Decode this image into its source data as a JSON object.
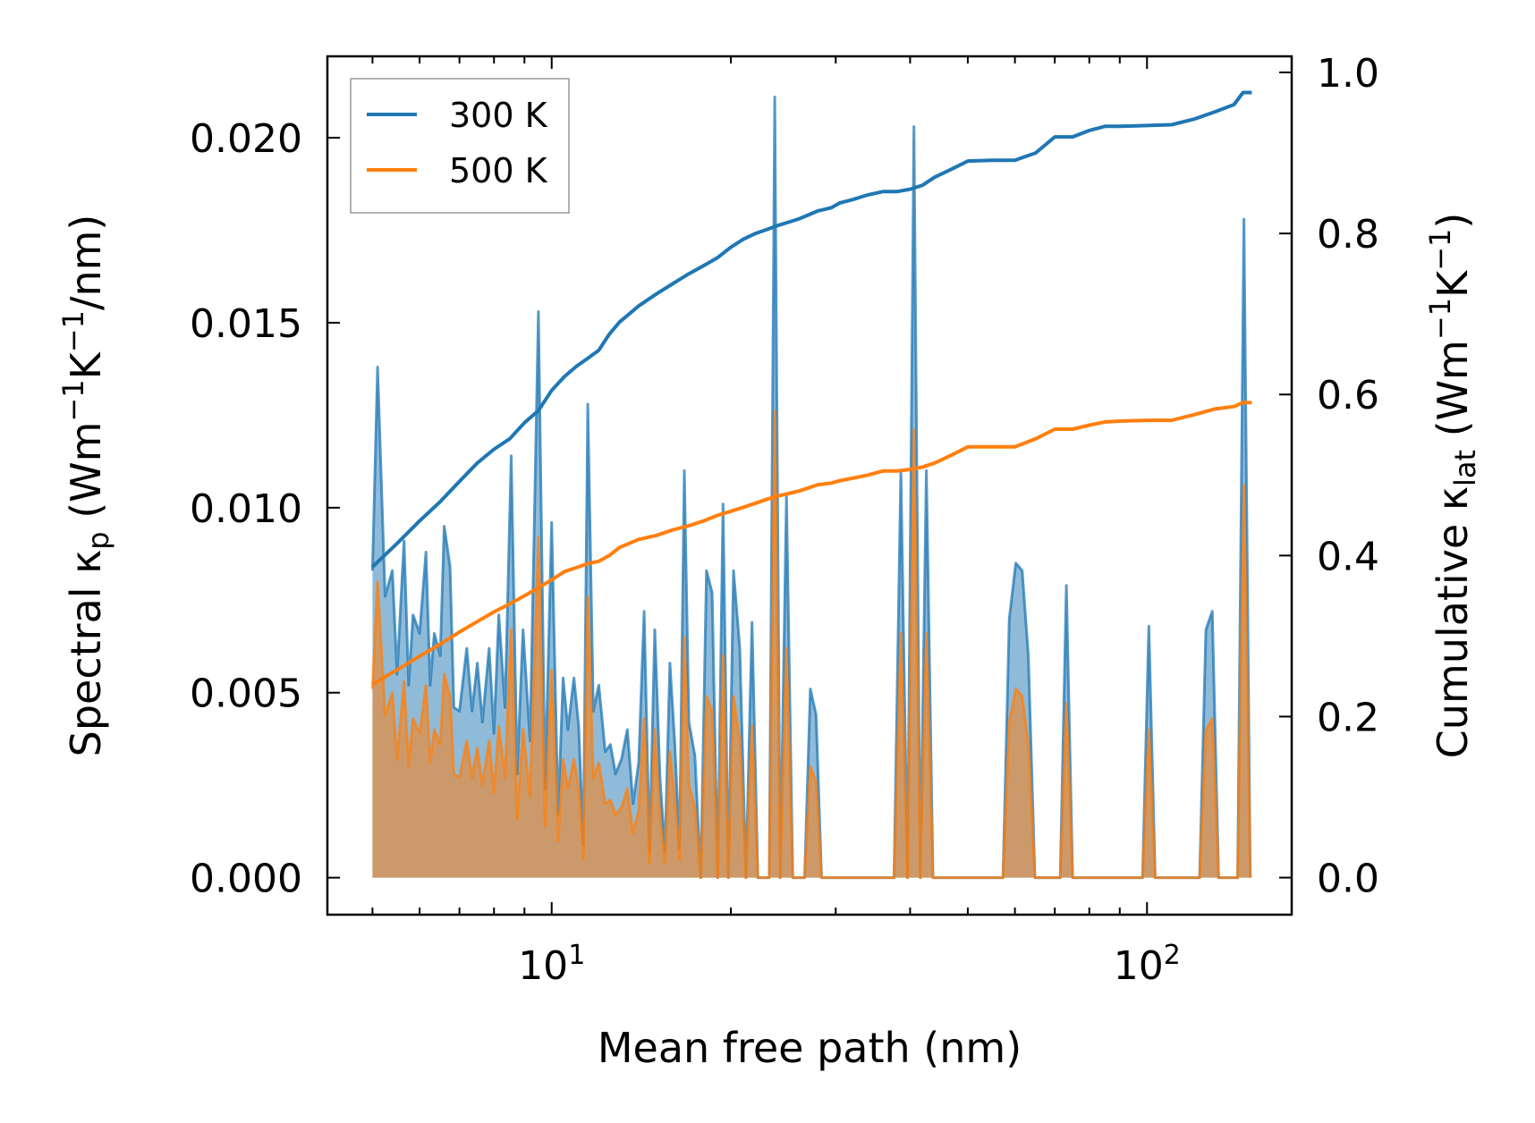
{
  "chart_data": {
    "type": "line",
    "xscale": "log",
    "xlim": [
      4.2,
      175
    ],
    "xlabel": "Mean free path (nm)",
    "xticks": [
      {
        "value": 10,
        "base": "10",
        "exp": "1"
      },
      {
        "value": 100,
        "base": "10",
        "exp": "2"
      }
    ],
    "left_axis": {
      "label_main": "Spectral κ",
      "label_sub": "p",
      "label_unit": " (Wm",
      "label_sup1": "−1",
      "label_mid": "K",
      "label_sup2": "−1",
      "label_end": "/nm)",
      "ylim": [
        -0.001,
        0.0222
      ],
      "ticks": [
        "0.000",
        "0.005",
        "0.010",
        "0.015",
        "0.020"
      ],
      "tick_values": [
        0,
        0.005,
        0.01,
        0.015,
        0.02
      ]
    },
    "right_axis": {
      "label_main": "Cumulative κ",
      "label_sub": "lat",
      "label_unit": " (Wm",
      "label_sup1": "−1",
      "label_mid": "K",
      "label_sup2": "−1",
      "label_end": ")",
      "ylim": [
        -0.046,
        1.02
      ],
      "ticks": [
        "0.0",
        "0.2",
        "0.4",
        "0.6",
        "0.8",
        "1.0"
      ],
      "tick_values": [
        0,
        0.2,
        0.4,
        0.6,
        0.8,
        1.0
      ]
    },
    "legend": {
      "placement": "top-left",
      "entries": [
        "300 K",
        "500 K"
      ]
    },
    "series": [
      {
        "name": "300 K",
        "color": "#1f77b4",
        "fill_color": "#1f77b4",
        "spectral_x": [
          5.0,
          5.1,
          5.25,
          5.4,
          5.5,
          5.65,
          5.75,
          5.85,
          6.0,
          6.15,
          6.25,
          6.35,
          6.5,
          6.6,
          6.75,
          6.85,
          7.0,
          7.2,
          7.35,
          7.5,
          7.65,
          7.85,
          8.0,
          8.15,
          8.35,
          8.55,
          8.75,
          8.95,
          9.2,
          9.5,
          9.75,
          10.0,
          10.25,
          10.45,
          10.65,
          10.9,
          11.1,
          11.3,
          11.5,
          11.75,
          12.0,
          12.3,
          12.55,
          12.8,
          13.1,
          13.4,
          13.7,
          14.0,
          14.3,
          14.6,
          14.9,
          15.2,
          15.5,
          15.8,
          16.1,
          16.4,
          16.7,
          17.0,
          17.4,
          17.8,
          18.2,
          18.6,
          19.0,
          19.4,
          19.8,
          20.2,
          20.7,
          21.2,
          21.7,
          22.2,
          22.7,
          23.2,
          23.7,
          24.2,
          24.8,
          25.4,
          26.0,
          26.6,
          27.2,
          27.8,
          28.4,
          29.0,
          29.6,
          30.3,
          31.0,
          31.7,
          32.5,
          33.3,
          34.1,
          34.9,
          35.8,
          36.7,
          37.6,
          38.6,
          39.6,
          40.6,
          41.6,
          42.6,
          43.7,
          44.8,
          45.9,
          47.0,
          48.2,
          49.4,
          50.6,
          51.9,
          53.2,
          54.5,
          55.9,
          57.3,
          58.7,
          60.2,
          61.7,
          63.2,
          64.8,
          66.4,
          68.0,
          69.7,
          71.5,
          73.2,
          75.0,
          76.9,
          78.8,
          80.8,
          82.8,
          84.8,
          86.9,
          89.1,
          91.3,
          93.6,
          95.9,
          98.3,
          100.7,
          103.2,
          105.8,
          108.4,
          111.1,
          113.9,
          116.7,
          119.6,
          122.6,
          125.6,
          128.7,
          131.9,
          135.2,
          138.6,
          142.0,
          145.5,
          149.1
        ],
        "spectral_y": [
          0.0083,
          0.0138,
          0.0076,
          0.0083,
          0.0055,
          0.0091,
          0.0052,
          0.0071,
          0.0066,
          0.0088,
          0.0052,
          0.0066,
          0.006,
          0.0095,
          0.0084,
          0.0046,
          0.0045,
          0.0062,
          0.0045,
          0.0058,
          0.0042,
          0.0062,
          0.0039,
          0.0071,
          0.0046,
          0.0114,
          0.0028,
          0.0067,
          0.0037,
          0.0153,
          0.0024,
          0.0096,
          0.0017,
          0.0054,
          0.004,
          0.0054,
          0.0041,
          0.0009,
          0.0128,
          0.0045,
          0.0052,
          0.0034,
          0.0036,
          0.0028,
          0.0032,
          0.004,
          0.002,
          0.0031,
          0.0072,
          0.0007,
          0.0067,
          0.0027,
          0.0007,
          0.0058,
          0.0036,
          0.0008,
          0.011,
          0.0042,
          0.0033,
          0.0,
          0.0083,
          0.0077,
          0.0,
          0.0101,
          0.0,
          0.0083,
          0.0062,
          0.0,
          0.0069,
          0.0,
          0.0,
          0.0,
          0.0211,
          0.0,
          0.0103,
          0.0,
          0.0,
          0.0,
          0.0051,
          0.0044,
          0.0,
          0.0,
          0.0,
          0.0,
          0.0,
          0.0,
          0.0,
          0.0,
          0.0,
          0.0,
          0.0,
          0.0,
          0.0,
          0.011,
          0.0,
          0.0203,
          0.0,
          0.011,
          0.0,
          0.0,
          0.0,
          0.0,
          0.0,
          0.0,
          0.0,
          0.0,
          0.0,
          0.0,
          0.0,
          0.0,
          0.007,
          0.0085,
          0.0083,
          0.006,
          0.0,
          0.0,
          0.0,
          0.0,
          0.0,
          0.0079,
          0.0,
          0.0,
          0.0,
          0.0,
          0.0,
          0.0,
          0.0,
          0.0,
          0.0,
          0.0,
          0.0,
          0.0,
          0.0068,
          0.0,
          0.0,
          0.0,
          0.0,
          0.0,
          0.0,
          0.0,
          0.0,
          0.0067,
          0.0072,
          0.0,
          0.0,
          0.0,
          0.0,
          0.0178,
          0.0
        ],
        "cumulative_x": [
          5.0,
          5.5,
          6.0,
          6.5,
          7.0,
          7.5,
          8.0,
          8.5,
          9.0,
          9.5,
          10.0,
          10.5,
          11.0,
          11.5,
          12.0,
          12.5,
          13.0,
          14.0,
          15.0,
          16.0,
          17.0,
          18.0,
          19.0,
          20.0,
          21.0,
          22.0,
          23.0,
          24.0,
          25.0,
          26.0,
          27.0,
          28.0,
          29.5,
          30.5,
          32.0,
          34.0,
          36.0,
          38.0,
          40.0,
          42.0,
          44.0,
          45.5,
          47.0,
          48.5,
          50.0,
          55.0,
          60.0,
          65.0,
          70.0,
          75.0,
          80.0,
          85.0,
          90.0,
          100.0,
          110.0,
          120.0,
          130.0,
          140.0,
          145.0,
          150.0
        ],
        "cumulative_y": [
          0.386,
          0.415,
          0.443,
          0.467,
          0.492,
          0.515,
          0.532,
          0.545,
          0.565,
          0.58,
          0.605,
          0.622,
          0.635,
          0.645,
          0.655,
          0.675,
          0.69,
          0.71,
          0.725,
          0.738,
          0.75,
          0.76,
          0.77,
          0.783,
          0.793,
          0.8,
          0.805,
          0.81,
          0.814,
          0.818,
          0.823,
          0.828,
          0.832,
          0.838,
          0.842,
          0.848,
          0.852,
          0.852,
          0.855,
          0.86,
          0.87,
          0.875,
          0.88,
          0.885,
          0.89,
          0.891,
          0.891,
          0.9,
          0.92,
          0.92,
          0.928,
          0.933,
          0.933,
          0.934,
          0.935,
          0.942,
          0.951,
          0.96,
          0.975,
          0.975
        ]
      },
      {
        "name": "500 K",
        "color": "#ff7f0e",
        "fill_color": "#ff7f0e",
        "spectral_x": [
          5.0,
          5.1,
          5.25,
          5.4,
          5.5,
          5.65,
          5.75,
          5.85,
          6.0,
          6.15,
          6.25,
          6.35,
          6.5,
          6.6,
          6.75,
          6.85,
          7.0,
          7.2,
          7.35,
          7.5,
          7.65,
          7.85,
          8.0,
          8.15,
          8.35,
          8.55,
          8.75,
          8.95,
          9.2,
          9.5,
          9.75,
          10.0,
          10.25,
          10.45,
          10.65,
          10.9,
          11.1,
          11.3,
          11.5,
          11.75,
          12.0,
          12.3,
          12.55,
          12.8,
          13.1,
          13.4,
          13.7,
          14.0,
          14.3,
          14.6,
          14.9,
          15.2,
          15.5,
          15.8,
          16.1,
          16.4,
          16.7,
          17.0,
          17.4,
          17.8,
          18.2,
          18.6,
          19.0,
          19.4,
          19.8,
          20.2,
          20.7,
          21.2,
          21.7,
          22.2,
          22.7,
          23.2,
          23.7,
          24.2,
          24.8,
          25.4,
          26.0,
          26.6,
          27.2,
          27.8,
          28.4,
          29.0,
          29.6,
          30.3,
          31.0,
          31.7,
          32.5,
          33.3,
          34.1,
          34.9,
          35.8,
          36.7,
          37.6,
          38.6,
          39.6,
          40.6,
          41.6,
          42.6,
          43.7,
          44.8,
          45.9,
          47.0,
          48.2,
          49.4,
          50.6,
          51.9,
          53.2,
          54.5,
          55.9,
          57.3,
          58.7,
          60.2,
          61.7,
          63.2,
          64.8,
          66.4,
          68.0,
          69.7,
          71.5,
          73.2,
          75.0,
          76.9,
          78.8,
          80.8,
          82.8,
          84.8,
          86.9,
          89.1,
          91.3,
          93.6,
          95.9,
          98.3,
          100.7,
          103.2,
          105.8,
          108.4,
          111.1,
          113.9,
          116.7,
          119.6,
          122.6,
          125.6,
          128.7,
          131.9,
          135.2,
          138.6,
          142.0,
          145.5,
          149.1
        ],
        "spectral_y": [
          0.0051,
          0.008,
          0.0044,
          0.005,
          0.0032,
          0.0053,
          0.003,
          0.0043,
          0.0039,
          0.0052,
          0.0031,
          0.004,
          0.0036,
          0.0055,
          0.0049,
          0.0028,
          0.0027,
          0.0037,
          0.0027,
          0.0035,
          0.0025,
          0.0037,
          0.0023,
          0.0041,
          0.0027,
          0.0067,
          0.0016,
          0.004,
          0.0022,
          0.0092,
          0.0014,
          0.0056,
          0.001,
          0.0032,
          0.0024,
          0.0032,
          0.0024,
          0.0005,
          0.0076,
          0.0027,
          0.0031,
          0.002,
          0.0021,
          0.0017,
          0.0019,
          0.0024,
          0.0012,
          0.0018,
          0.0043,
          0.0004,
          0.004,
          0.0016,
          0.0004,
          0.0034,
          0.0021,
          0.0005,
          0.0065,
          0.0025,
          0.0019,
          0.0,
          0.0049,
          0.0045,
          0.0,
          0.006,
          0.0,
          0.0049,
          0.0037,
          0.0,
          0.0041,
          0.0,
          0.0,
          0.0,
          0.0126,
          0.0,
          0.0062,
          0.0,
          0.0,
          0.0,
          0.003,
          0.0026,
          0.0,
          0.0,
          0.0,
          0.0,
          0.0,
          0.0,
          0.0,
          0.0,
          0.0,
          0.0,
          0.0,
          0.0,
          0.0,
          0.0066,
          0.0,
          0.0121,
          0.0,
          0.0066,
          0.0,
          0.0,
          0.0,
          0.0,
          0.0,
          0.0,
          0.0,
          0.0,
          0.0,
          0.0,
          0.0,
          0.0,
          0.0042,
          0.0051,
          0.0049,
          0.0036,
          0.0,
          0.0,
          0.0,
          0.0,
          0.0,
          0.0047,
          0.0,
          0.0,
          0.0,
          0.0,
          0.0,
          0.0,
          0.0,
          0.0,
          0.0,
          0.0,
          0.0,
          0.0,
          0.004,
          0.0,
          0.0,
          0.0,
          0.0,
          0.0,
          0.0,
          0.0,
          0.0,
          0.004,
          0.0043,
          0.0,
          0.0,
          0.0,
          0.0,
          0.0106,
          0.0
        ],
        "cumulative_x": [
          5.0,
          5.5,
          6.0,
          6.5,
          7.0,
          7.5,
          8.0,
          8.5,
          9.0,
          9.5,
          10.0,
          10.5,
          11.0,
          11.5,
          12.0,
          12.5,
          13.0,
          14.0,
          15.0,
          16.0,
          17.0,
          18.0,
          19.0,
          20.0,
          21.0,
          22.0,
          23.0,
          24.0,
          25.0,
          26.0,
          27.0,
          28.0,
          29.5,
          30.5,
          32.0,
          34.0,
          36.0,
          38.0,
          40.0,
          42.0,
          44.0,
          45.5,
          47.0,
          48.5,
          50.0,
          55.0,
          60.0,
          65.0,
          70.0,
          75.0,
          80.0,
          85.0,
          90.0,
          100.0,
          110.0,
          120.0,
          130.0,
          140.0,
          145.0,
          150.0
        ],
        "cumulative_y": [
          0.24,
          0.258,
          0.275,
          0.29,
          0.305,
          0.318,
          0.33,
          0.34,
          0.35,
          0.36,
          0.37,
          0.38,
          0.385,
          0.39,
          0.393,
          0.4,
          0.41,
          0.42,
          0.425,
          0.432,
          0.437,
          0.443,
          0.45,
          0.455,
          0.46,
          0.465,
          0.47,
          0.474,
          0.477,
          0.48,
          0.484,
          0.488,
          0.49,
          0.493,
          0.496,
          0.5,
          0.505,
          0.505,
          0.507,
          0.51,
          0.515,
          0.52,
          0.525,
          0.53,
          0.535,
          0.535,
          0.535,
          0.545,
          0.557,
          0.557,
          0.562,
          0.566,
          0.567,
          0.568,
          0.568,
          0.575,
          0.582,
          0.585,
          0.59,
          0.59
        ]
      }
    ]
  }
}
